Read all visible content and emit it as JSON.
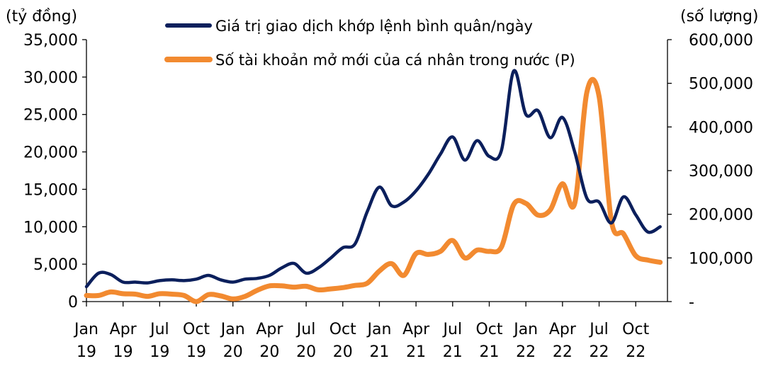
{
  "chart_data": {
    "type": "line",
    "left_unit": "(tỷ đồng)",
    "right_unit": "(số lượng)",
    "x_ticks": [
      {
        "month": "Jan",
        "year": "19"
      },
      {
        "month": "Apr",
        "year": "19"
      },
      {
        "month": "Jul",
        "year": "19"
      },
      {
        "month": "Oct",
        "year": "19"
      },
      {
        "month": "Jan",
        "year": "20"
      },
      {
        "month": "Apr",
        "year": "20"
      },
      {
        "month": "Jul",
        "year": "20"
      },
      {
        "month": "Oct",
        "year": "20"
      },
      {
        "month": "Jan",
        "year": "21"
      },
      {
        "month": "Apr",
        "year": "21"
      },
      {
        "month": "Jul",
        "year": "21"
      },
      {
        "month": "Oct",
        "year": "21"
      },
      {
        "month": "Jan",
        "year": "22"
      },
      {
        "month": "Apr",
        "year": "22"
      },
      {
        "month": "Jul",
        "year": "22"
      },
      {
        "month": "Oct",
        "year": "22"
      }
    ],
    "y_left_ticks": [
      "0",
      "5,000",
      "10,000",
      "15,000",
      "20,000",
      "25,000",
      "30,000",
      "35,000"
    ],
    "y_right_ticks": [
      "-",
      "100,000",
      "200,000",
      "300,000",
      "400,000",
      "500,000",
      "600,000"
    ],
    "ylim_left": [
      0,
      35000
    ],
    "ylim_right": [
      0,
      600000
    ],
    "x": [
      "2019-01",
      "2019-02",
      "2019-03",
      "2019-04",
      "2019-05",
      "2019-06",
      "2019-07",
      "2019-08",
      "2019-09",
      "2019-10",
      "2019-11",
      "2019-12",
      "2020-01",
      "2020-02",
      "2020-03",
      "2020-04",
      "2020-05",
      "2020-06",
      "2020-07",
      "2020-08",
      "2020-09",
      "2020-10",
      "2020-11",
      "2020-12",
      "2021-01",
      "2021-02",
      "2021-03",
      "2021-04",
      "2021-05",
      "2021-06",
      "2021-07",
      "2021-08",
      "2021-09",
      "2021-10",
      "2021-11",
      "2021-12",
      "2022-01",
      "2022-02",
      "2022-03",
      "2022-04",
      "2022-05",
      "2022-06",
      "2022-07",
      "2022-08",
      "2022-09",
      "2022-10",
      "2022-11",
      "2022-12"
    ],
    "series": [
      {
        "name": "Giá trị giao dịch khớp lệnh bình quân/ngày",
        "axis": "left",
        "color": "#0b1f5c",
        "values": [
          2000,
          3800,
          3600,
          2600,
          2600,
          2500,
          2800,
          2900,
          2800,
          3000,
          3500,
          2900,
          2600,
          3000,
          3100,
          3500,
          4500,
          5100,
          3800,
          4500,
          5800,
          7200,
          7700,
          12000,
          15300,
          12800,
          13300,
          14800,
          17000,
          19700,
          22000,
          18900,
          21500,
          19400,
          20200,
          30800,
          25000,
          25500,
          21900,
          24600,
          20000,
          13800,
          13300,
          10500,
          14000,
          11600,
          9300,
          10000
        ]
      },
      {
        "name": "Số tài khoản mở mới của cá nhân trong nước (P)",
        "axis": "right",
        "color": "#f28a30",
        "values": [
          14000,
          14000,
          22000,
          18000,
          17000,
          12000,
          18000,
          17000,
          14000,
          0,
          16000,
          13000,
          6000,
          12000,
          26000,
          36000,
          36000,
          33000,
          35000,
          27000,
          29000,
          32000,
          37000,
          42000,
          70000,
          87000,
          60000,
          110000,
          108000,
          115000,
          140000,
          100000,
          118000,
          115000,
          125000,
          222000,
          225000,
          198000,
          210000,
          270000,
          225000,
          480000,
          470000,
          185000,
          155000,
          105000,
          95000,
          90000
        ]
      }
    ],
    "legend": "top-center",
    "grid": false
  }
}
